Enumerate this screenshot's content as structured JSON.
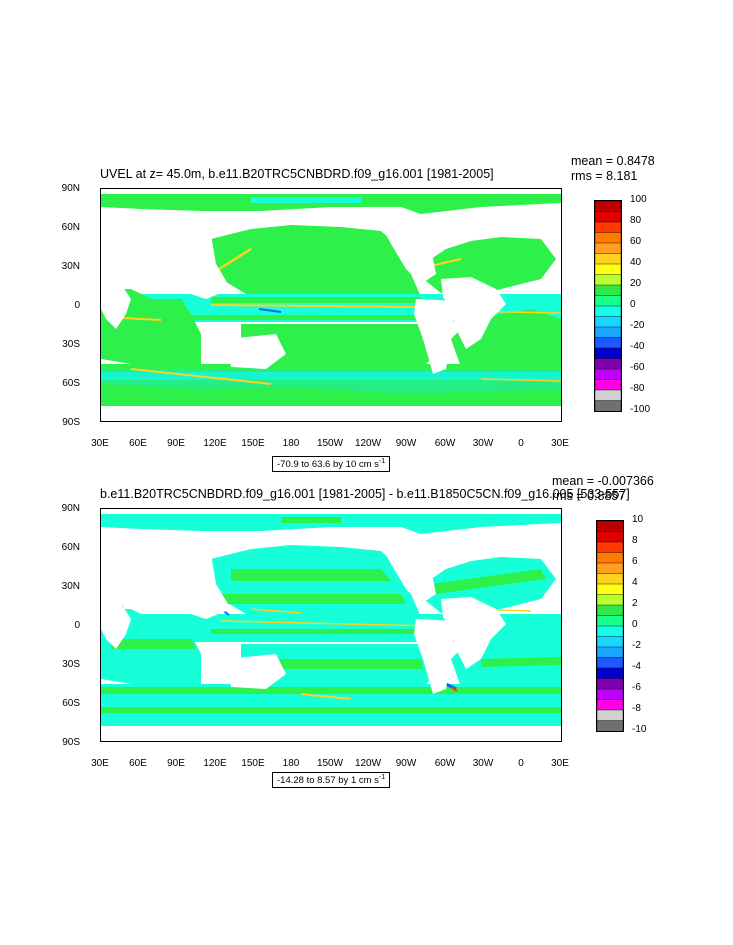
{
  "panels": [
    {
      "title": "UVEL at z=  45.0m, b.e11.B20TRC5CNBDRD.f09_g16.001 [1981-2005]",
      "stats": [
        "mean = 0.8478",
        "rms = 8.181"
      ],
      "range_label": "-70.9 to 63.6 by 10 cm s",
      "range_sup": "-1",
      "colorbar_labels": [
        "100",
        "80",
        "60",
        "40",
        "20",
        "0",
        "-20",
        "-40",
        "-60",
        "-80",
        "-100"
      ]
    },
    {
      "title": "b.e11.B20TRC5CNBDRD.f09_g16.001 [1981-2005] - b.e11.B1850C5CN.f09_g16.005 [533-557]",
      "stats": [
        "mean = -0.007366",
        "rms = 0.8857"
      ],
      "range_label": "-14.28 to 8.57 by 1 cm s",
      "range_sup": "-1",
      "colorbar_labels": [
        "10",
        "8",
        "6",
        "4",
        "2",
        "0",
        "-2",
        "-4",
        "-6",
        "-8",
        "-10"
      ]
    }
  ],
  "lat_labels": [
    "90N",
    "60N",
    "30N",
    "0",
    "30S",
    "60S",
    "90S"
  ],
  "lon_labels": [
    "30E",
    "60E",
    "90E",
    "120E",
    "150E",
    "180",
    "150W",
    "120W",
    "90W",
    "60W",
    "30W",
    "0",
    "30E"
  ],
  "colorbar_colors": [
    "#c00000",
    "#e00000",
    "#ff3a00",
    "#ff7a00",
    "#ffa020",
    "#ffd21e",
    "#ffff10",
    "#b8ff30",
    "#2ee84a",
    "#18ff8a",
    "#14ffe6",
    "#18d6ff",
    "#1aa6ff",
    "#1a5aff",
    "#0000d0",
    "#8000b0",
    "#c000ff",
    "#ff00e6",
    "#d0d0d0",
    "#707070"
  ],
  "colors": {
    "land": "#ffffff",
    "ocean_green": "#2ef04a",
    "ocean_cyan": "#16ffd8",
    "ocean_teal": "#18e8c6",
    "frame": "#000000"
  }
}
